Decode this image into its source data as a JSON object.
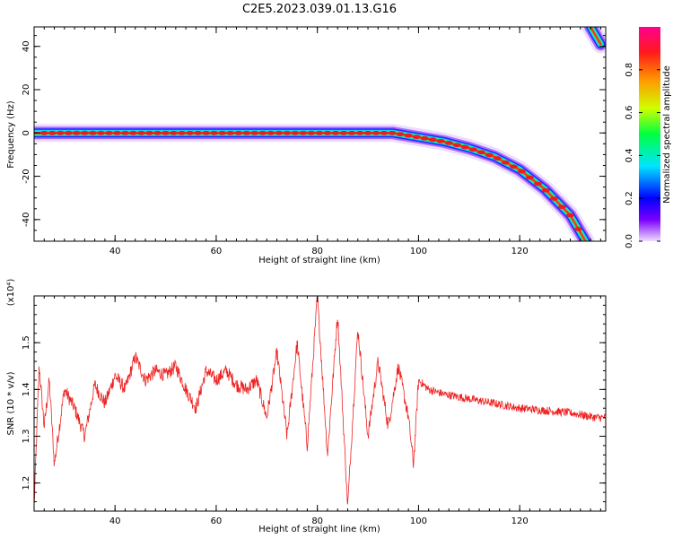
{
  "page_title": "C2E5.2023.039.01.13.G16",
  "colorbar": {
    "label": "Normalized spectral amplitude",
    "ticks": [
      "0.0",
      "0.2",
      "0.4",
      "0.6",
      "0.8"
    ],
    "stops": [
      "#f0ddff",
      "#7a00ff",
      "#0000ff",
      "#00e5ff",
      "#00ff40",
      "#d0ff00",
      "#ff9a00",
      "#ff1a1a",
      "#ff0090"
    ]
  },
  "chart_data": [
    {
      "type": "heatmap",
      "title": "",
      "xlabel": "Height of straight line (km)",
      "ylabel": "Frequency (Hz)",
      "xlim": [
        24,
        137
      ],
      "ylim": [
        -50,
        49
      ],
      "xticks": [
        "40",
        "60",
        "80",
        "100",
        "120"
      ],
      "yticks": [
        "-40",
        "-20",
        "0",
        "20",
        "40"
      ],
      "colorbar_label": "Normalized spectral amplitude",
      "trace": [
        {
          "x": 24,
          "y": 0
        },
        {
          "x": 40,
          "y": 0
        },
        {
          "x": 60,
          "y": 0
        },
        {
          "x": 80,
          "y": 0
        },
        {
          "x": 95,
          "y": 0
        },
        {
          "x": 100,
          "y": -2
        },
        {
          "x": 105,
          "y": -4
        },
        {
          "x": 110,
          "y": -7
        },
        {
          "x": 115,
          "y": -11
        },
        {
          "x": 120,
          "y": -17
        },
        {
          "x": 125,
          "y": -26
        },
        {
          "x": 130,
          "y": -38
        },
        {
          "x": 133,
          "y": -50
        },
        {
          "x": 134,
          "y": 49
        },
        {
          "x": 136,
          "y": 41
        }
      ]
    },
    {
      "type": "line",
      "title": "",
      "xlabel": "Height of straight line (km)",
      "ylabel": "SNR (10 * v/v)",
      "scale_label": "(x10⁴)",
      "xlim": [
        24,
        137
      ],
      "ylim": [
        1.14,
        1.6
      ],
      "xticks": [
        "40",
        "60",
        "80",
        "100",
        "120"
      ],
      "yticks": [
        "1.2",
        "1.3",
        "1.4",
        "1.5"
      ],
      "series": [
        {
          "color": "#ee2222",
          "x": [
            24,
            25,
            26,
            27,
            28,
            30,
            32,
            34,
            36,
            38,
            40,
            42,
            44,
            46,
            48,
            50,
            52,
            54,
            56,
            58,
            60,
            62,
            64,
            66,
            68,
            70,
            72,
            74,
            76,
            78,
            80,
            82,
            84,
            86,
            88,
            90,
            92,
            94,
            96,
            98,
            99,
            100,
            102,
            105,
            110,
            115,
            120,
            125,
            130,
            135,
            137
          ],
          "y": [
            1.15,
            1.45,
            1.32,
            1.42,
            1.24,
            1.4,
            1.36,
            1.3,
            1.41,
            1.37,
            1.43,
            1.4,
            1.47,
            1.42,
            1.44,
            1.43,
            1.45,
            1.4,
            1.36,
            1.44,
            1.42,
            1.44,
            1.41,
            1.4,
            1.42,
            1.34,
            1.48,
            1.3,
            1.5,
            1.28,
            1.6,
            1.26,
            1.56,
            1.15,
            1.53,
            1.3,
            1.46,
            1.32,
            1.45,
            1.34,
            1.24,
            1.42,
            1.4,
            1.39,
            1.38,
            1.37,
            1.36,
            1.355,
            1.35,
            1.34,
            1.34
          ]
        }
      ]
    }
  ]
}
